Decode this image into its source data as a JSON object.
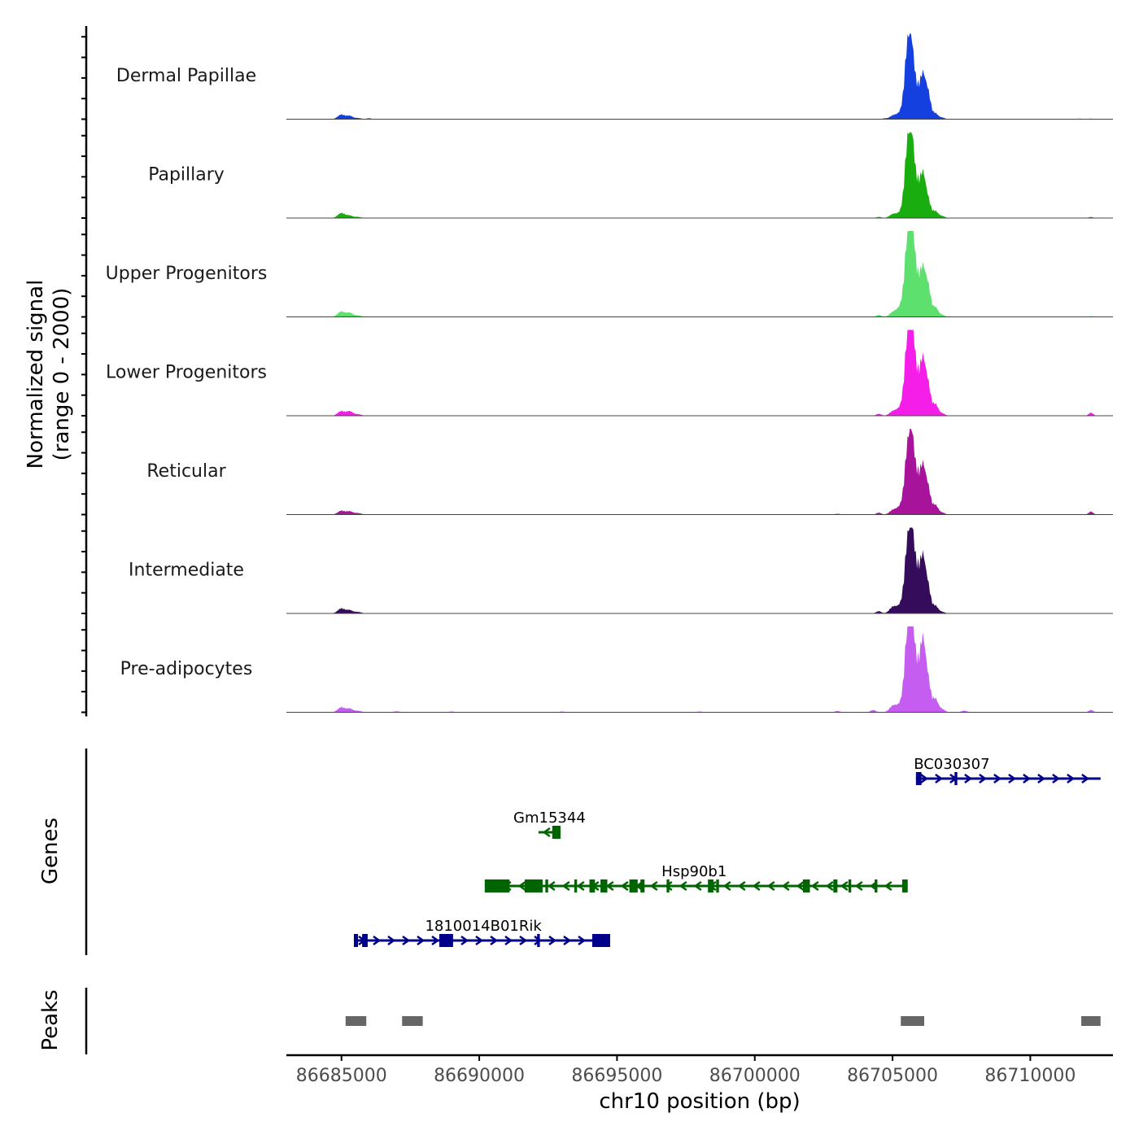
{
  "chart_data": {
    "type": "area",
    "title": "",
    "y_axis_label_line1": "Normalized signal",
    "y_axis_label_line2": "(range 0 - 2000)",
    "ylim": [
      0,
      2000
    ],
    "xlabel": "chr10 position (bp)",
    "xlim": [
      86683000,
      86713000
    ],
    "x_ticks": [
      86685000,
      86690000,
      86695000,
      86700000,
      86705000,
      86710000
    ],
    "x_tick_labels": [
      "86685000",
      "86690000",
      "86695000",
      "86700000",
      "86705000",
      "86710000"
    ],
    "tracks": [
      {
        "name": "Dermal Papillae",
        "color": "#1440e0",
        "peaks": [
          [
            86685000,
            120,
            130
          ],
          [
            86685300,
            80,
            110
          ],
          [
            86685600,
            30,
            120
          ],
          [
            86686000,
            25,
            80
          ],
          [
            86704700,
            20,
            70
          ],
          [
            86705000,
            80,
            120
          ],
          [
            86705300,
            160,
            150
          ],
          [
            86705550,
            1800,
            110
          ],
          [
            86705720,
            1300,
            90
          ],
          [
            86705900,
            600,
            90
          ],
          [
            86706100,
            1100,
            100
          ],
          [
            86706300,
            600,
            90
          ],
          [
            86706550,
            150,
            100
          ],
          [
            86706800,
            40,
            100
          ],
          [
            86711800,
            15,
            80
          ],
          [
            86712200,
            15,
            80
          ]
        ]
      },
      {
        "name": "Papillary",
        "color": "#1aad0f",
        "peaks": [
          [
            86685000,
            130,
            130
          ],
          [
            86685300,
            60,
            110
          ],
          [
            86685600,
            30,
            120
          ],
          [
            86704500,
            30,
            90
          ],
          [
            86705000,
            90,
            120
          ],
          [
            86705300,
            130,
            150
          ],
          [
            86705550,
            1800,
            110
          ],
          [
            86705720,
            1500,
            90
          ],
          [
            86705900,
            700,
            90
          ],
          [
            86706100,
            1100,
            100
          ],
          [
            86706300,
            400,
            90
          ],
          [
            86706550,
            180,
            100
          ],
          [
            86706800,
            50,
            100
          ],
          [
            86712200,
            30,
            80
          ]
        ]
      },
      {
        "name": "Upper Progenitors",
        "color": "#5ee06e",
        "peaks": [
          [
            86685000,
            140,
            130
          ],
          [
            86685300,
            100,
            110
          ],
          [
            86685600,
            40,
            120
          ],
          [
            86704500,
            50,
            90
          ],
          [
            86705000,
            100,
            120
          ],
          [
            86705300,
            250,
            150
          ],
          [
            86705550,
            1900,
            110
          ],
          [
            86705720,
            1900,
            90
          ],
          [
            86705900,
            800,
            90
          ],
          [
            86706100,
            1200,
            100
          ],
          [
            86706300,
            700,
            90
          ],
          [
            86706550,
            250,
            100
          ],
          [
            86706800,
            50,
            100
          ],
          [
            86712200,
            20,
            80
          ]
        ]
      },
      {
        "name": "Lower Progenitors",
        "color": "#f51ee8",
        "peaks": [
          [
            86685000,
            120,
            130
          ],
          [
            86685300,
            110,
            110
          ],
          [
            86685600,
            40,
            120
          ],
          [
            86704500,
            50,
            90
          ],
          [
            86705000,
            100,
            120
          ],
          [
            86705300,
            200,
            150
          ],
          [
            86705550,
            1900,
            110
          ],
          [
            86705720,
            1900,
            90
          ],
          [
            86705900,
            800,
            90
          ],
          [
            86706100,
            1400,
            100
          ],
          [
            86706300,
            700,
            90
          ],
          [
            86706550,
            300,
            100
          ],
          [
            86706800,
            60,
            100
          ],
          [
            86712200,
            80,
            80
          ]
        ]
      },
      {
        "name": "Reticular",
        "color": "#a8139c",
        "peaks": [
          [
            86685000,
            100,
            130
          ],
          [
            86685300,
            80,
            110
          ],
          [
            86685600,
            40,
            120
          ],
          [
            86703000,
            20,
            100
          ],
          [
            86704500,
            50,
            90
          ],
          [
            86705000,
            100,
            120
          ],
          [
            86705300,
            200,
            150
          ],
          [
            86705550,
            1600,
            110
          ],
          [
            86705720,
            1500,
            90
          ],
          [
            86705900,
            800,
            90
          ],
          [
            86706100,
            1200,
            100
          ],
          [
            86706300,
            600,
            90
          ],
          [
            86706550,
            250,
            100
          ],
          [
            86706800,
            50,
            100
          ],
          [
            86712200,
            80,
            80
          ]
        ]
      },
      {
        "name": "Intermediate",
        "color": "#350c5c",
        "peaks": [
          [
            86685000,
            130,
            130
          ],
          [
            86685300,
            80,
            110
          ],
          [
            86685600,
            40,
            120
          ],
          [
            86704500,
            60,
            90
          ],
          [
            86705000,
            150,
            120
          ],
          [
            86705300,
            200,
            150
          ],
          [
            86705550,
            1700,
            110
          ],
          [
            86705720,
            1600,
            90
          ],
          [
            86705900,
            900,
            90
          ],
          [
            86706100,
            1400,
            100
          ],
          [
            86706300,
            600,
            90
          ],
          [
            86706550,
            200,
            100
          ],
          [
            86706800,
            40,
            100
          ]
        ]
      },
      {
        "name": "Pre-adipocytes",
        "color": "#c55ef0",
        "peaks": [
          [
            86685000,
            130,
            130
          ],
          [
            86685300,
            90,
            110
          ],
          [
            86685600,
            40,
            120
          ],
          [
            86687000,
            25,
            110
          ],
          [
            86689000,
            20,
            110
          ],
          [
            86693000,
            20,
            110
          ],
          [
            86698000,
            20,
            110
          ],
          [
            86703000,
            30,
            100
          ],
          [
            86704300,
            60,
            90
          ],
          [
            86705000,
            150,
            120
          ],
          [
            86705300,
            200,
            150
          ],
          [
            86705550,
            2000,
            110
          ],
          [
            86705720,
            1900,
            90
          ],
          [
            86705900,
            900,
            90
          ],
          [
            86706100,
            1800,
            100
          ],
          [
            86706300,
            700,
            90
          ],
          [
            86706550,
            350,
            100
          ],
          [
            86706800,
            80,
            100
          ],
          [
            86707600,
            40,
            100
          ],
          [
            86712200,
            60,
            80
          ]
        ]
      }
    ],
    "genes_label": "Genes",
    "genes": [
      {
        "name": "BC030307",
        "strand": "+",
        "color": "#00008b",
        "start": 86705850,
        "end": 86712550,
        "row": 0,
        "exons": [
          [
            86705850,
            86706050
          ],
          [
            86707250,
            86707350
          ]
        ]
      },
      {
        "name": "Gm15344",
        "strand": "-",
        "color": "#006400",
        "start": 86692150,
        "end": 86692950,
        "row": 1,
        "exons": [
          [
            86692650,
            86692950
          ]
        ]
      },
      {
        "name": "Hsp90b1",
        "strand": "-",
        "color": "#006400",
        "start": 86690200,
        "end": 86705550,
        "row": 2,
        "exons": [
          [
            86690200,
            86691100
          ],
          [
            86691650,
            86692300
          ],
          [
            86692400,
            86692500
          ],
          [
            86693450,
            86693550
          ],
          [
            86694000,
            86694200
          ],
          [
            86694400,
            86694650
          ],
          [
            86695450,
            86695750
          ],
          [
            86695850,
            86696000
          ],
          [
            86696800,
            86696900
          ],
          [
            86698300,
            86698500
          ],
          [
            86698600,
            86698700
          ],
          [
            86701750,
            86702000
          ],
          [
            86702850,
            86703000
          ],
          [
            86703400,
            86703500
          ],
          [
            86704350,
            86704450
          ],
          [
            86705350,
            86705550
          ]
        ]
      },
      {
        "name": "1810014B01Rik",
        "strand": "+",
        "color": "#00008b",
        "start": 86685450,
        "end": 86694750,
        "row": 3,
        "exons": [
          [
            86685450,
            86685600
          ],
          [
            86685750,
            86685950
          ],
          [
            86688550,
            86689050
          ],
          [
            86692100,
            86692200
          ],
          [
            86694100,
            86694750
          ]
        ]
      }
    ],
    "peaks_label": "Peaks",
    "peak_regions": [
      [
        86685150,
        86685900
      ],
      [
        86687200,
        86687950
      ],
      [
        86705300,
        86706150
      ],
      [
        86711850,
        86712550
      ]
    ]
  }
}
